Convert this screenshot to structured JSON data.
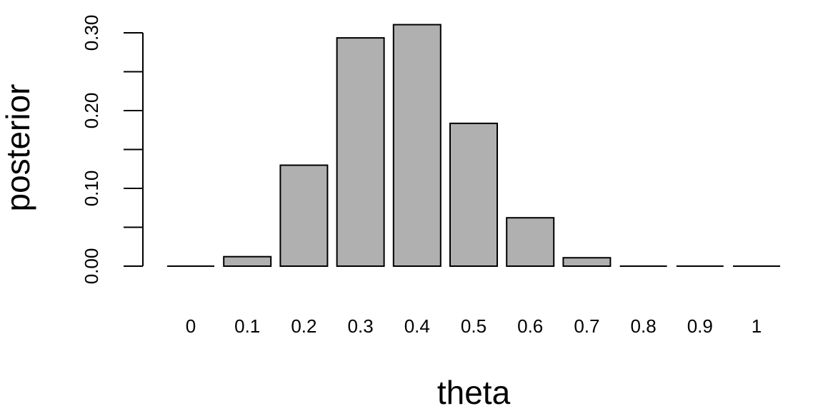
{
  "chart_data": {
    "type": "bar",
    "categories": [
      "0",
      "0.1",
      "0.2",
      "0.3",
      "0.4",
      "0.5",
      "0.6",
      "0.7",
      "0.8",
      "0.9",
      "1"
    ],
    "values": [
      0.0,
      0.0122,
      0.1298,
      0.2935,
      0.3105,
      0.1836,
      0.0622,
      0.0108,
      0.0009,
      0.0,
      0.0
    ],
    "title": "",
    "xlabel": "theta",
    "ylabel": "posterior",
    "ylim": [
      0,
      0.3
    ],
    "yticks": [
      0.0,
      0.05,
      0.1,
      0.15,
      0.2,
      0.25,
      0.3
    ],
    "ytick_labels": [
      "0.00",
      "",
      "0.10",
      "",
      "0.20",
      "",
      "0.30"
    ],
    "grid": false,
    "colors": {
      "bar_fill": "#b0b0b0",
      "bar_stroke": "#000000"
    }
  }
}
